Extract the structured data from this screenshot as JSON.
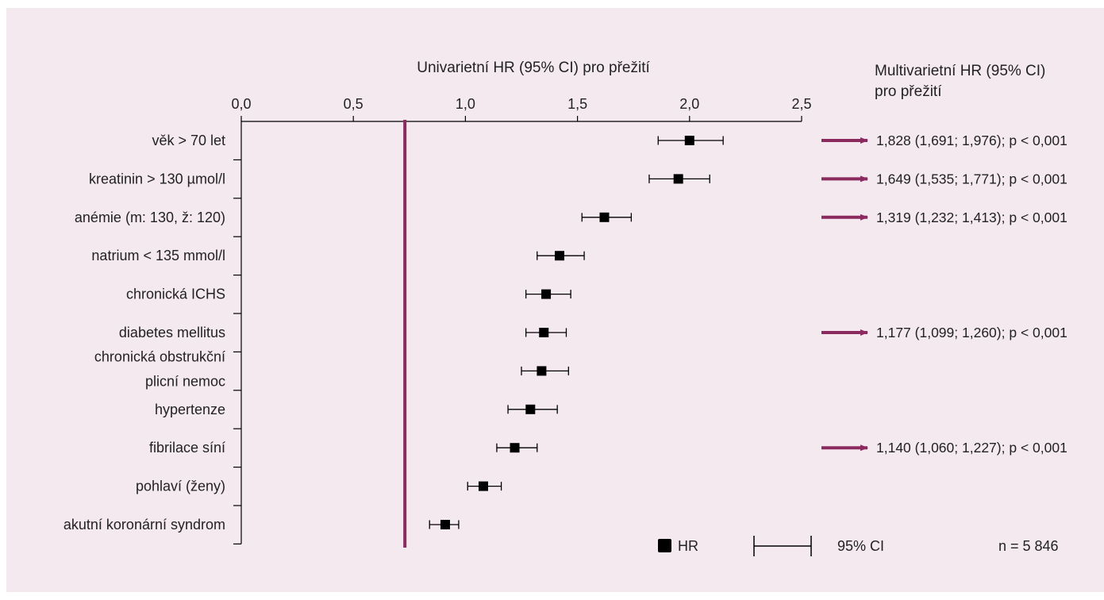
{
  "chart_data": {
    "type": "forest",
    "title": "Univarietní HR (95% CI) pro přežití",
    "right_title_line1": "Multivarietní HR (95% CI)",
    "right_title_line2": "pro přežití",
    "x_ticks": [
      "0,0",
      "0,5",
      "1,0",
      "1,5",
      "2,0",
      "2,5"
    ],
    "x_tick_values": [
      0,
      0.5,
      1.0,
      1.5,
      2.0,
      2.5
    ],
    "xlim": [
      0,
      2.5
    ],
    "reference_line_x": 0.73,
    "reference_line_color": "#8b2a5e",
    "marker_color": "#000000",
    "rows": [
      {
        "label": "věk > 70 let",
        "hr": 2.0,
        "ci_low": 1.86,
        "ci_high": 2.15,
        "multivariate": "1,828 (1,691; 1,976); p < 0,001"
      },
      {
        "label": "kreatinin > 130 µmol/l",
        "hr": 1.95,
        "ci_low": 1.82,
        "ci_high": 2.09,
        "multivariate": "1,649 (1,535; 1,771); p < 0,001"
      },
      {
        "label": "anémie (m: 130, ž: 120)",
        "hr": 1.62,
        "ci_low": 1.52,
        "ci_high": 1.74,
        "multivariate": "1,319 (1,232; 1,413); p < 0,001"
      },
      {
        "label": "natrium < 135 mmol/l",
        "hr": 1.42,
        "ci_low": 1.32,
        "ci_high": 1.53,
        "multivariate": ""
      },
      {
        "label": "chronická ICHS",
        "hr": 1.36,
        "ci_low": 1.27,
        "ci_high": 1.47,
        "multivariate": ""
      },
      {
        "label": "diabetes mellitus",
        "hr": 1.35,
        "ci_low": 1.27,
        "ci_high": 1.45,
        "multivariate": "1,177 (1,099; 1,260); p < 0,001"
      },
      {
        "label_line1": "chronická obstrukční",
        "label_line2": "plicní nemoc",
        "hr": 1.34,
        "ci_low": 1.25,
        "ci_high": 1.46,
        "multivariate": ""
      },
      {
        "label": "hypertenze",
        "hr": 1.29,
        "ci_low": 1.19,
        "ci_high": 1.41,
        "multivariate": ""
      },
      {
        "label": "fibrilace síní",
        "hr": 1.22,
        "ci_low": 1.14,
        "ci_high": 1.32,
        "multivariate": "1,140 (1,060; 1,227); p < 0,001"
      },
      {
        "label": "pohlaví (ženy)",
        "hr": 1.08,
        "ci_low": 1.01,
        "ci_high": 1.16,
        "multivariate": ""
      },
      {
        "label": "akutní koronární syndrom",
        "hr": 0.91,
        "ci_low": 0.84,
        "ci_high": 0.97,
        "multivariate": ""
      }
    ],
    "legend": {
      "hr": "HR",
      "ci": "95% CI"
    },
    "n_label": "n = 5 846"
  }
}
